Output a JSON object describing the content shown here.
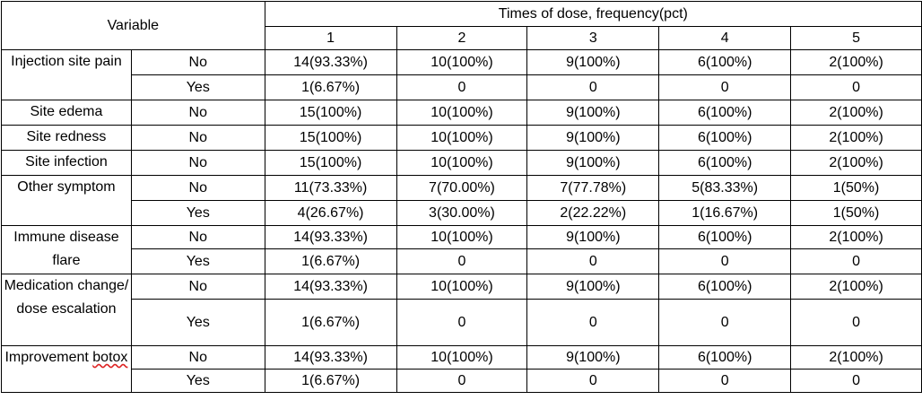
{
  "header": {
    "variable": "Variable",
    "group_title": "Times of dose, frequency(pct)",
    "doses": [
      "1",
      "2",
      "3",
      "4",
      "5"
    ]
  },
  "rows": [
    {
      "variable": "Injection site pain",
      "levels": [
        {
          "level": "No",
          "values": [
            "14(93.33%)",
            "10(100%)",
            "9(100%)",
            "6(100%)",
            "2(100%)"
          ]
        },
        {
          "level": "Yes",
          "values": [
            "1(6.67%)",
            "0",
            "0",
            "0",
            "0"
          ]
        }
      ]
    },
    {
      "variable": "Site edema",
      "levels": [
        {
          "level": "No",
          "values": [
            "15(100%)",
            "10(100%)",
            "9(100%)",
            "6(100%)",
            "2(100%)"
          ]
        }
      ]
    },
    {
      "variable": "Site redness",
      "levels": [
        {
          "level": "No",
          "values": [
            "15(100%)",
            "10(100%)",
            "9(100%)",
            "6(100%)",
            "2(100%)"
          ]
        }
      ]
    },
    {
      "variable": "Site infection",
      "levels": [
        {
          "level": "No",
          "values": [
            "15(100%)",
            "10(100%)",
            "9(100%)",
            "6(100%)",
            "2(100%)"
          ]
        }
      ]
    },
    {
      "variable": "Other symptom",
      "levels": [
        {
          "level": "No",
          "values": [
            "11(73.33%)",
            "7(70.00%)",
            "7(77.78%)",
            "5(83.33%)",
            "1(50%)"
          ]
        },
        {
          "level": "Yes",
          "values": [
            "4(26.67%)",
            "3(30.00%)",
            "2(22.22%)",
            "1(16.67%)",
            "1(50%)"
          ]
        }
      ]
    },
    {
      "variable": "Immune disease flare",
      "levels": [
        {
          "level": "No",
          "values": [
            "14(93.33%)",
            "10(100%)",
            "9(100%)",
            "6(100%)",
            "2(100%)"
          ]
        },
        {
          "level": "Yes",
          "values": [
            "1(6.67%)",
            "0",
            "0",
            "0",
            "0"
          ]
        }
      ]
    },
    {
      "variable": "Medication change/ dose escalation",
      "levels": [
        {
          "level": "No",
          "values": [
            "14(93.33%)",
            "10(100%)",
            "9(100%)",
            "6(100%)",
            "2(100%)"
          ]
        },
        {
          "level": "Yes",
          "values": [
            "1(6.67%)",
            "0",
            "0",
            "0",
            "0"
          ]
        }
      ]
    },
    {
      "variable": "Improvement botox",
      "levels": [
        {
          "level": "No",
          "values": [
            "14(93.33%)",
            "10(100%)",
            "9(100%)",
            "6(100%)",
            "2(100%)"
          ]
        },
        {
          "level": "Yes",
          "values": [
            "1(6.67%)",
            "0",
            "0",
            "0",
            "0"
          ]
        }
      ]
    }
  ]
}
